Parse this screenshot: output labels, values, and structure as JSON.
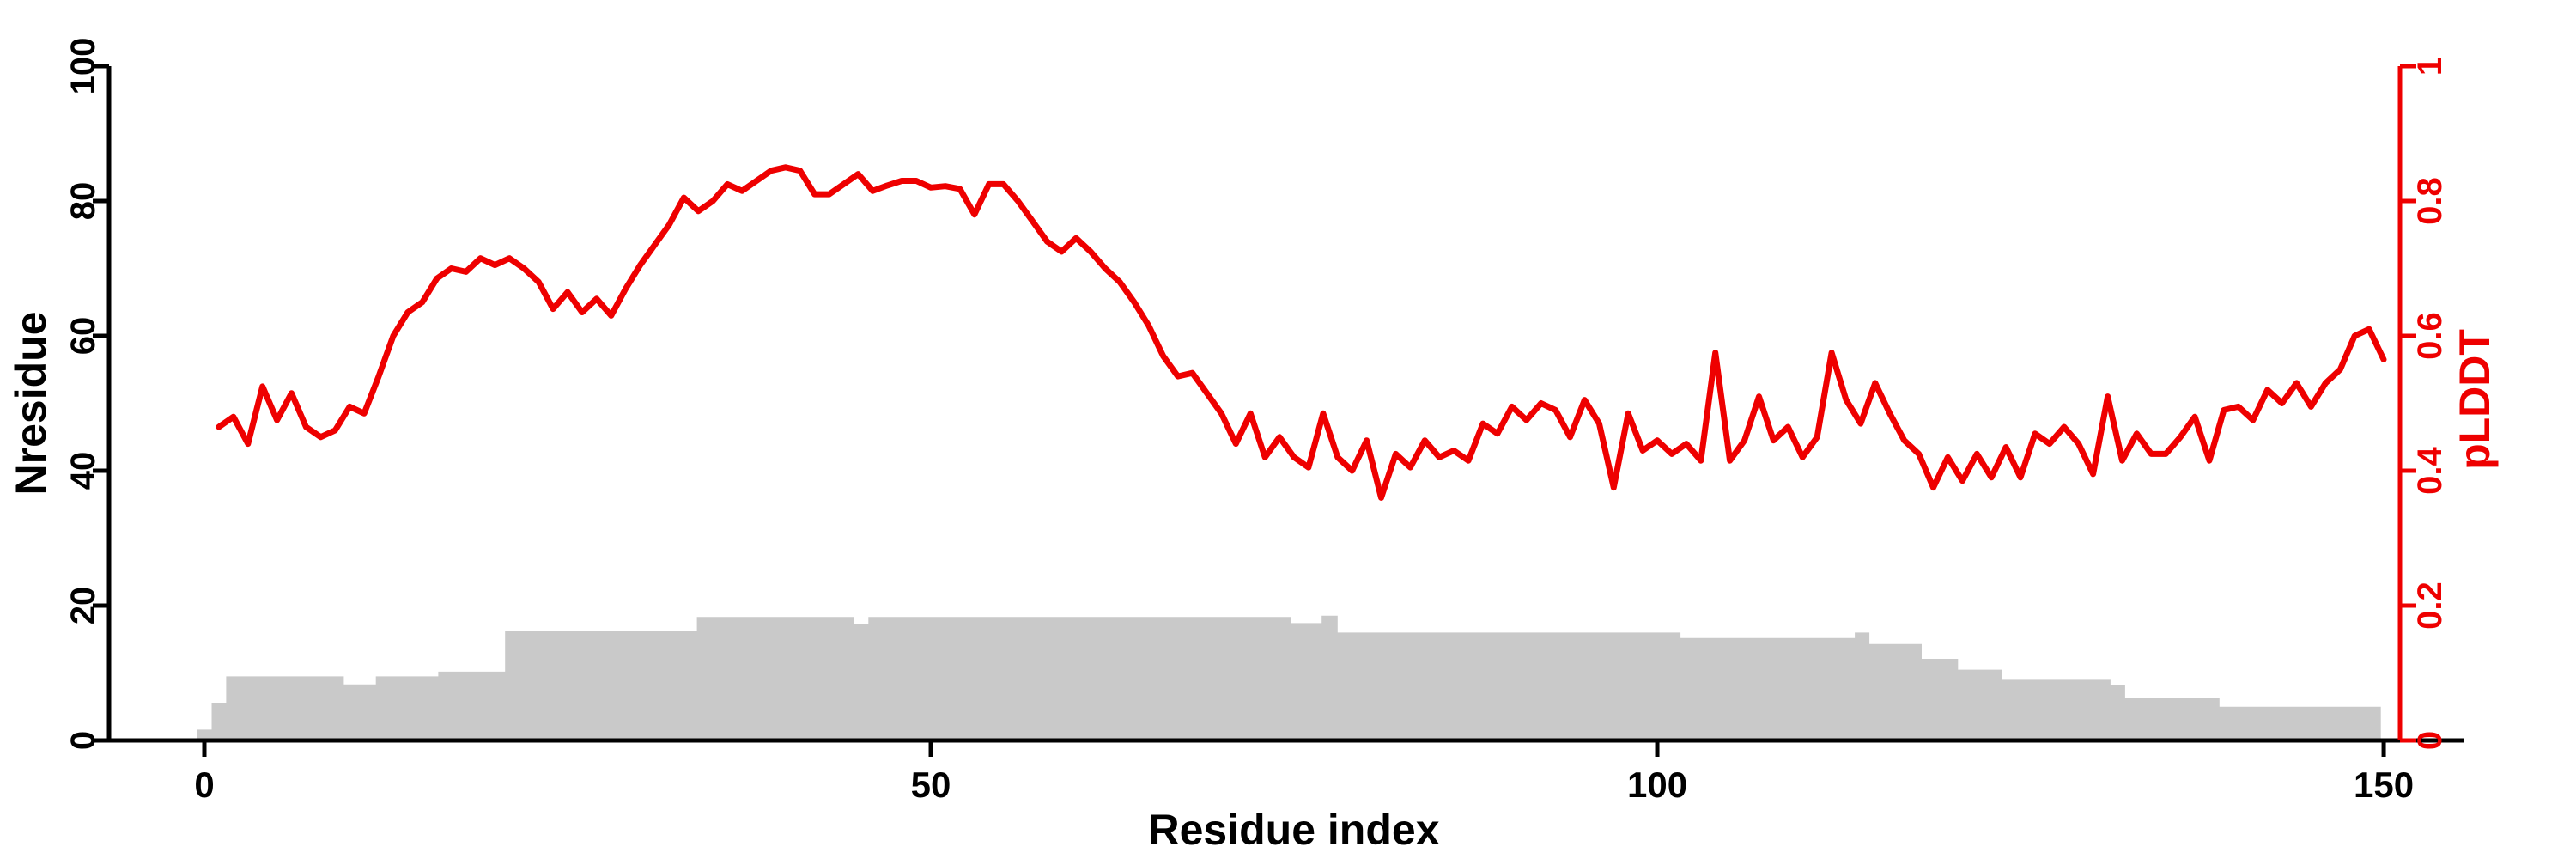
{
  "chart_data": {
    "type": "line",
    "title": "",
    "xlabel": "Residue index",
    "background": "#ffffff",
    "grid": false,
    "legend": "none",
    "x_axis": {
      "ticks": [
        0,
        50,
        100,
        150
      ],
      "tick_labels": [
        "0",
        "50",
        "100",
        "150"
      ],
      "lim": [
        -6.56,
        151.12
      ],
      "color": "#000000"
    },
    "left_axis": {
      "label": "Nresidue",
      "ticks": [
        0,
        20,
        40,
        60,
        80,
        100
      ],
      "tick_labels": [
        "0",
        "20",
        "40",
        "60",
        "80",
        "100"
      ],
      "lim": [
        0,
        100
      ],
      "color": "#000000"
    },
    "right_axis": {
      "label": "pLDDT",
      "ticks": [
        0,
        0.2,
        0.4,
        0.6,
        0.8,
        1
      ],
      "tick_labels": [
        "0",
        "0.2",
        "0.4",
        "0.6",
        "0.8",
        "1"
      ],
      "lim": [
        0,
        1
      ],
      "color": "#ee0000"
    },
    "colors": {
      "plddt_line": "#ee0000",
      "nresidue_area": "#c9c9c9",
      "axis_black": "#000000"
    },
    "series": [
      {
        "name": "pLDDT",
        "type": "line",
        "axis": "right",
        "x_start": 1,
        "x_step": 1,
        "values": [
          0.465,
          0.48,
          0.44,
          0.525,
          0.475,
          0.515,
          0.465,
          0.45,
          0.46,
          0.495,
          0.485,
          0.54,
          0.6,
          0.635,
          0.65,
          0.685,
          0.7,
          0.695,
          0.715,
          0.705,
          0.715,
          0.7,
          0.68,
          0.64,
          0.665,
          0.635,
          0.655,
          0.63,
          0.67,
          0.705,
          0.735,
          0.765,
          0.805,
          0.785,
          0.8,
          0.825,
          0.815,
          0.83,
          0.845,
          0.85,
          0.845,
          0.81,
          0.81,
          0.825,
          0.84,
          0.815,
          0.823,
          0.83,
          0.83,
          0.82,
          0.822,
          0.818,
          0.78,
          0.825,
          0.825,
          0.8,
          0.77,
          0.74,
          0.725,
          0.745,
          0.725,
          0.7,
          0.68,
          0.65,
          0.615,
          0.57,
          0.54,
          0.545,
          0.515,
          0.485,
          0.44,
          0.485,
          0.42,
          0.45,
          0.42,
          0.405,
          0.485,
          0.42,
          0.4,
          0.445,
          0.36,
          0.425,
          0.405,
          0.445,
          0.42,
          0.43,
          0.415,
          0.47,
          0.455,
          0.495,
          0.475,
          0.5,
          0.49,
          0.45,
          0.505,
          0.47,
          0.375,
          0.485,
          0.43,
          0.445,
          0.425,
          0.44,
          0.415,
          0.575,
          0.415,
          0.445,
          0.51,
          0.445,
          0.465,
          0.42,
          0.45,
          0.575,
          0.505,
          0.47,
          0.53,
          0.485,
          0.445,
          0.425,
          0.375,
          0.42,
          0.385,
          0.425,
          0.39,
          0.435,
          0.39,
          0.455,
          0.44,
          0.465,
          0.44,
          0.395,
          0.51,
          0.415,
          0.455,
          0.425,
          0.425,
          0.45,
          0.48,
          0.415,
          0.49,
          0.495,
          0.475,
          0.52,
          0.5,
          0.53,
          0.495,
          0.53,
          0.55,
          0.6,
          0.61,
          0.565
        ]
      },
      {
        "name": "Nresidue",
        "type": "step-area",
        "axis": "left",
        "steps": [
          [
            -0.5,
            0.5,
            1.6
          ],
          [
            0.5,
            1.5,
            5.6
          ],
          [
            1.5,
            9.6,
            9.5
          ],
          [
            9.6,
            11.8,
            8.3
          ],
          [
            11.8,
            16.1,
            9.5
          ],
          [
            16.1,
            20.7,
            10.2
          ],
          [
            20.7,
            33.9,
            16.3
          ],
          [
            33.9,
            44.7,
            18.3
          ],
          [
            44.7,
            45.7,
            17.3
          ],
          [
            45.7,
            74.8,
            18.3
          ],
          [
            74.8,
            76.9,
            17.4
          ],
          [
            76.9,
            78.0,
            18.5
          ],
          [
            78.0,
            101.6,
            16.0
          ],
          [
            101.6,
            113.6,
            15.2
          ],
          [
            113.6,
            114.6,
            16.0
          ],
          [
            114.6,
            118.2,
            14.3
          ],
          [
            118.2,
            120.7,
            12.1
          ],
          [
            120.7,
            123.7,
            10.5
          ],
          [
            123.7,
            131.2,
            9.0
          ],
          [
            131.2,
            132.2,
            8.2
          ],
          [
            132.2,
            138.7,
            6.3
          ],
          [
            138.7,
            149.8,
            5.0
          ]
        ]
      }
    ]
  }
}
